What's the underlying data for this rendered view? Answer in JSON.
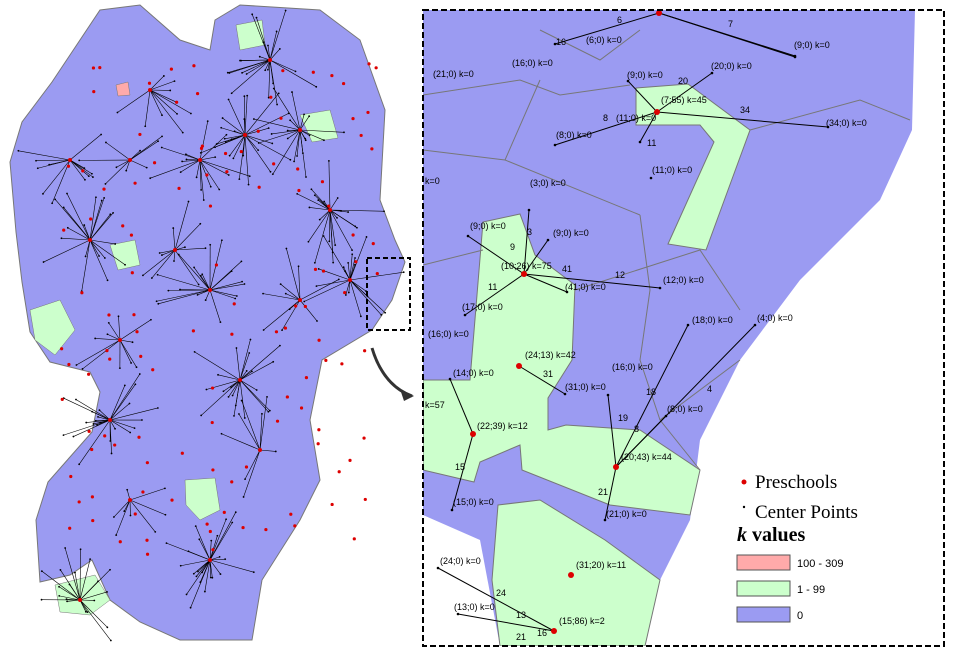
{
  "zoom": {
    "point_labels": [
      "(21;0) k=0",
      "(16;0) k=0",
      "(6;0) k=0",
      "(9;0) k=0",
      "(20;0) k=0",
      "(9;0) k=0",
      "(7;55) k=45",
      "(34;0) k=0",
      "(11;0) k=0",
      "(8;0) k=0",
      "(11;0) k=0",
      "k=0",
      "(3;0) k=0",
      "(9;0) k=0",
      "(9;0) k=0",
      "(10;26) k=75",
      "(41;0) k=0",
      "(12;0) k=0",
      "(17;0) k=0",
      "(16;0) k=0",
      "(18;0) k=0",
      "(4;0) k=0",
      "(24;13) k=42",
      "(14;0) k=0",
      "(31;0) k=0",
      "(16;0) k=0",
      "(8;0) k=0",
      "k=57",
      "(22;39) k=12",
      "(20;43) k=44",
      "(15;0) k=0",
      "(21;0) k=0",
      "(24;0) k=0",
      "(31;20) k=11",
      "(13;0) k=0",
      "(15;86) k=2"
    ],
    "edge_labels": [
      "16",
      "6",
      "7",
      "20",
      "8",
      "34",
      "11",
      "9",
      "3",
      "41",
      "12",
      "11",
      "31",
      "18",
      "4",
      "19",
      "8",
      "15",
      "21",
      "24",
      "13",
      "21",
      "16"
    ]
  },
  "legend": {
    "preschools": "Preschools",
    "center_points": "Center Points",
    "k_symbol": "k",
    "k_title": "values",
    "classes": [
      "100 - 309",
      "1 - 99",
      "0"
    ]
  }
}
